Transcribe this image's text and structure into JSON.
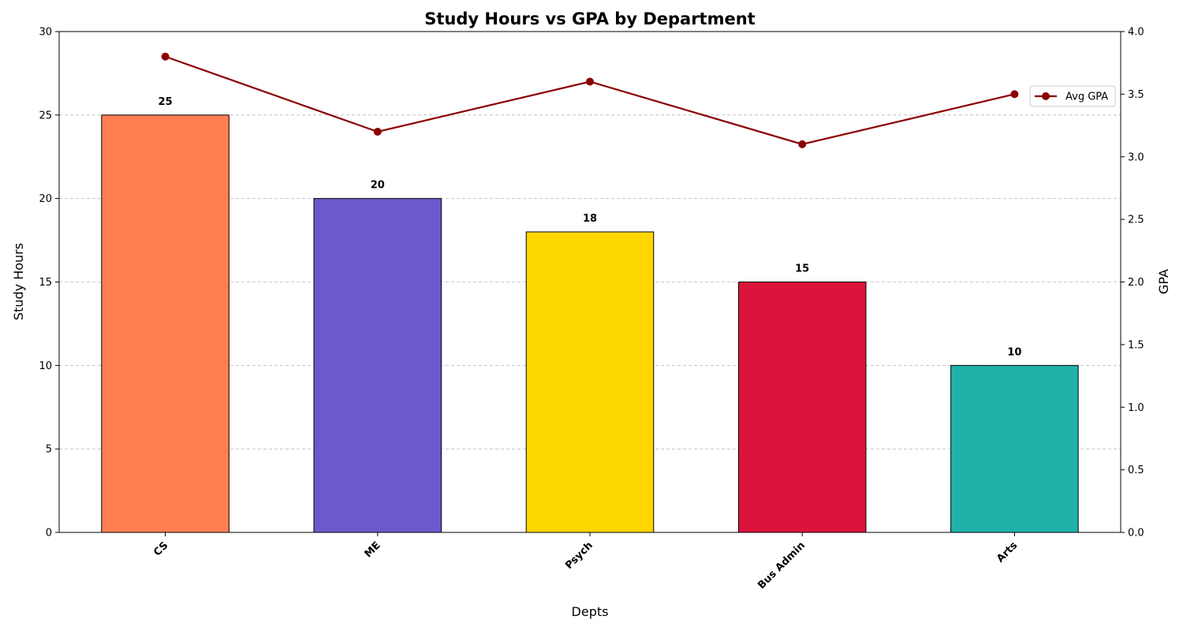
{
  "chart_data": {
    "type": "bar",
    "title": "Study Hours vs GPA by Department",
    "xlabel": "Depts",
    "ylabel": "Study Hours",
    "y2label": "GPA",
    "categories": [
      "CS",
      "ME",
      "Psych",
      "Bus Admin",
      "Arts"
    ],
    "series": [
      {
        "type": "bar",
        "axis": "left",
        "values": [
          25,
          20,
          18,
          15,
          10
        ],
        "colors": [
          "#FF7F50",
          "#6A5ACD",
          "#FFD700",
          "#DC143C",
          "#20B2AA"
        ]
      },
      {
        "type": "line",
        "axis": "right",
        "name": "Avg GPA",
        "values": [
          3.8,
          3.2,
          3.6,
          3.1,
          3.5
        ],
        "color": "#8B0000"
      }
    ],
    "ylim": [
      0,
      30
    ],
    "y2lim": [
      0,
      4.0
    ],
    "yticks": [
      "0",
      "5",
      "10",
      "15",
      "20",
      "25",
      "30"
    ],
    "y2ticks": [
      "0.0",
      "0.5",
      "1.0",
      "1.5",
      "2.0",
      "2.5",
      "3.0",
      "3.5",
      "4.0"
    ],
    "grid": "horizontal dashed",
    "legend_position": "upper right",
    "bar_data_labels": [
      "25",
      "20",
      "18",
      "15",
      "10"
    ]
  }
}
